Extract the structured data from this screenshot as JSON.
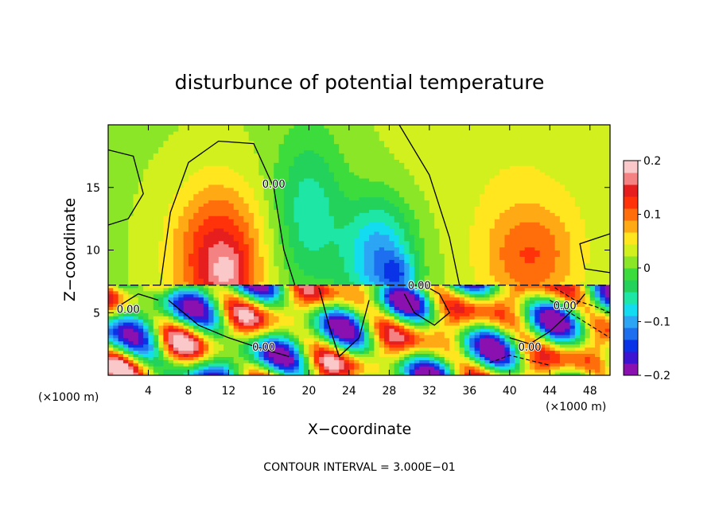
{
  "chart_data": {
    "type": "heatmap",
    "title": "disturbunce of potential temperature",
    "xlabel": "X−coordinate",
    "ylabel": "Z−coordinate",
    "x_unit": "(×1000 m)",
    "x_unit_right": "(×1000 m)",
    "footer": "CONTOUR INTERVAL = 3.000E−01",
    "xlim": [
      0,
      50
    ],
    "ylim": [
      0,
      20
    ],
    "x_ticks": [
      4,
      8,
      12,
      16,
      20,
      24,
      28,
      32,
      36,
      40,
      44,
      48
    ],
    "y_ticks": [
      5,
      10,
      15
    ],
    "colorbar": {
      "min": -0.2,
      "max": 0.2,
      "tick_values": [
        0.2,
        0.1,
        0,
        -0.1,
        -0.2
      ],
      "tick_labels": [
        "0.2",
        "0.1",
        "0",
        "−0.1",
        "−0.2"
      ],
      "colors": [
        "#8a10b0",
        "#3c14d2",
        "#0a32e6",
        "#1e6ef0",
        "#2da5f5",
        "#14dcf0",
        "#1ee6a5",
        "#23d25a",
        "#3cdc3c",
        "#8ce628",
        "#d2f01e",
        "#ffe61e",
        "#ffaa14",
        "#ff6e0a",
        "#ff320a",
        "#e61e1e",
        "#f58282",
        "#fac8c8"
      ]
    },
    "contour_labels": [
      {
        "text": "0.00",
        "x": 16.5,
        "z": 15.3
      },
      {
        "text": "0.00",
        "x": 31.0,
        "z": 7.2
      },
      {
        "text": "0.00",
        "x": 2.0,
        "z": 5.3
      },
      {
        "text": "0.00",
        "x": 15.5,
        "z": 2.3
      },
      {
        "text": "0.00",
        "x": 42.0,
        "z": 2.3
      },
      {
        "text": "0.00",
        "x": 45.5,
        "z": 5.6
      }
    ]
  }
}
